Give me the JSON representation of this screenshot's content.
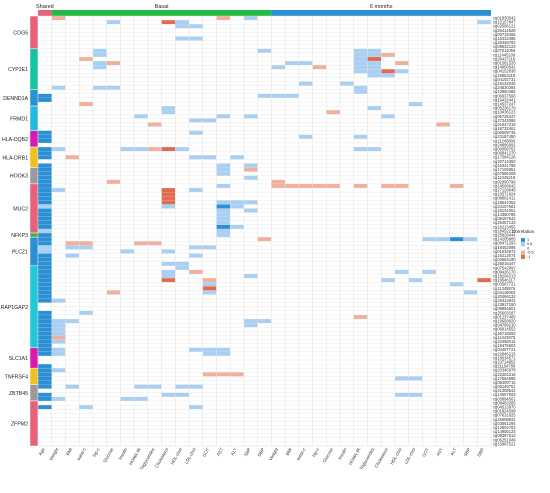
{
  "colors": {
    "shared": "#e8607a",
    "basal": "#22bb44",
    "six_months": "#2a8fd4",
    "grid": "#dcdcdc",
    "strong_pos": "#2a8fd4",
    "weak_pos": "#a9cff2",
    "weak_neg": "#f0b09c",
    "strong_neg": "#e06b4e",
    "gene_palette": [
      "#e8607a",
      "#17c3a0",
      "#2a8fd4",
      "#22bbdd",
      "#d81ab4",
      "#f0c020",
      "#9a9a9a",
      "#e8607a",
      "#3cb040",
      "#2a8fd4",
      "#22c7d8",
      "#d81ab4",
      "#f0c020",
      "#9a9a9a",
      "#e8607a"
    ]
  },
  "chart_data": {
    "type": "heatmap",
    "title": "",
    "groups": [
      {
        "name": "Shared",
        "columns": [
          "Age"
        ]
      },
      {
        "name": "Basal",
        "columns": [
          "Weight",
          "BMI",
          "waist-c",
          "hip-c",
          "Glucose",
          "Insulin",
          "HOMA-IR",
          "Triglycerides",
          "Cholesterol",
          "HDL-chol",
          "LDL-chol",
          "GOT",
          "AST",
          "ALT",
          "SBP",
          "DBP"
        ]
      },
      {
        "name": "6 months",
        "columns": [
          "Weight",
          "BMI",
          "waist-c",
          "hip-c",
          "Glucose",
          "Insulin",
          "HOMA-IR",
          "Triglycerides",
          "Cholesterol",
          "HDL-chol",
          "LDL-chol",
          "GOT",
          "AST",
          "ALT",
          "SBP",
          "DBP"
        ]
      }
    ],
    "genes": [
      {
        "name": "COG5",
        "label_shown": true,
        "probes": [
          "cg01830542",
          "cg12157847",
          "cg02566121",
          "cg26414528",
          "cg00719466",
          "cg15432486",
          "cg26348793",
          "cg09632123"
        ]
      },
      {
        "name": "CYP2E1",
        "label_shown": true,
        "probes": [
          "cg07011056",
          "cg11445109",
          "cg26437116",
          "cg01581526",
          "cg14956542",
          "cg04152838",
          "cg15863119",
          "cg04192731",
          "cg18132046",
          "cg24530284"
        ]
      },
      {
        "name": "DENND1A",
        "label_shown": true,
        "probes": [
          "cg10960485",
          "cg06937568",
          "cg19432441",
          "cg14537247"
        ]
      },
      {
        "name": "FRMD1",
        "label_shown": true,
        "probes": [
          "cg05236179",
          "cg10436123",
          "cg06725347",
          "cg27343086",
          "cg21547319",
          "cg18732461"
        ]
      },
      {
        "name": "HLA-DQB2",
        "label_shown": true,
        "probes": [
          "cg06509745",
          "cg23187450",
          "cg11245806",
          "cg24886091"
        ]
      },
      {
        "name": "HLA-DRB1",
        "label_shown": true,
        "probes": [
          "cg00058761",
          "cg06841270",
          "cg17584126",
          "cg20714350",
          "cg15341786"
        ]
      },
      {
        "name": "HOOK3",
        "label_shown": true,
        "probes": [
          "cg17106851",
          "cg07586309",
          "cg11045218",
          "cg02990798"
        ]
      },
      {
        "name": "MUC2",
        "label_shown": true,
        "probes": [
          "cg14508642",
          "cg27128048",
          "cg10571624",
          "cg08861411",
          "cg18544352",
          "cg24107581",
          "cg18134061",
          "cg14350786",
          "cg09167542",
          "cg26457133",
          "cg18213455",
          "cg18452219"
        ]
      },
      {
        "name": "NFKP3",
        "label_shown": true,
        "probes": [
          "cg25828444"
        ]
      },
      {
        "name": "PLCZ1",
        "label_shown": true,
        "probes": [
          "cg14205805",
          "cg08471293",
          "cg18452098",
          "cg01634972",
          "cg16213074",
          "cg03564190",
          "cg25016447"
        ]
      },
      {
        "name": "RAP1GAP2",
        "label_shown": true,
        "probes": [
          "cg07542097",
          "cg09426170",
          "cg18204213",
          "cg19546117",
          "cg03587721",
          "cg11345876",
          "cg04118063",
          "cg20468132",
          "cg26312941",
          "cg23917150",
          "cg08854601",
          "cg25603187",
          "cg01237485",
          "cg19658820",
          "cg04789210",
          "cg06914552",
          "cg26718093",
          "cg11042875",
          "cg23456014",
          "cg19475603"
        ]
      },
      {
        "name": "SLC1A1",
        "label_shown": true,
        "probes": [
          "cg04497721",
          "cg22846215",
          "cg18034571",
          "cg23714852",
          "cg21154789"
        ]
      },
      {
        "name": "TNFRSF4",
        "label_shown": true,
        "probes": [
          "cg20345978",
          "cg22304216",
          "cg17564985",
          "cg05409715"
        ]
      },
      {
        "name": "ZBTB45",
        "label_shown": true,
        "probes": [
          "cg06149751",
          "cg21308542",
          "cg14507923",
          "cg03894561"
        ]
      },
      {
        "name": "ZFPM2",
        "label_shown": true,
        "probes": [
          "cg08463285",
          "cg04513970",
          "cg01824598",
          "cg07631825",
          "cg25608841",
          "cg03561294",
          "cg12804763",
          "cg14905123",
          "cg09367813",
          "cg06251049",
          "cg15987521"
        ]
      }
    ],
    "cells": [
      [
        0,
        1,
        -0.5
      ],
      [
        0,
        13,
        -0.5
      ],
      [
        0,
        15,
        0.5
      ],
      [
        1,
        5,
        0.5
      ],
      [
        1,
        9,
        -1
      ],
      [
        1,
        10,
        0.5
      ],
      [
        1,
        32,
        0.5
      ],
      [
        2,
        10,
        0.5
      ],
      [
        2,
        11,
        0.5
      ],
      [
        5,
        10,
        0.5
      ],
      [
        5,
        11,
        0.5
      ],
      [
        8,
        4,
        0.5
      ],
      [
        8,
        16,
        0.5
      ],
      [
        8,
        23,
        0.5
      ],
      [
        8,
        24,
        0.5
      ],
      [
        9,
        4,
        0.5
      ],
      [
        9,
        23,
        0.5
      ],
      [
        9,
        24,
        0.5
      ],
      [
        9,
        25,
        -0.5
      ],
      [
        10,
        3,
        -0.5
      ],
      [
        10,
        23,
        0.5
      ],
      [
        10,
        24,
        -1
      ],
      [
        11,
        4,
        0.5
      ],
      [
        11,
        5,
        -0.5
      ],
      [
        11,
        18,
        0.5
      ],
      [
        11,
        19,
        0.5
      ],
      [
        11,
        23,
        0.5
      ],
      [
        11,
        24,
        0.5
      ],
      [
        11,
        26,
        -0.5
      ],
      [
        12,
        4,
        0.5
      ],
      [
        12,
        17,
        0.5
      ],
      [
        12,
        20,
        -0.5
      ],
      [
        12,
        23,
        0.5
      ],
      [
        12,
        24,
        0.5
      ],
      [
        13,
        23,
        0.5
      ],
      [
        13,
        24,
        0.5
      ],
      [
        13,
        25,
        -1
      ],
      [
        13,
        26,
        0.5
      ],
      [
        14,
        24,
        0.5
      ],
      [
        14,
        25,
        0.5
      ],
      [
        16,
        19,
        0.5
      ],
      [
        16,
        22,
        0.5
      ],
      [
        17,
        1,
        0.5
      ],
      [
        17,
        4,
        0.5
      ],
      [
        17,
        5,
        0.5
      ],
      [
        17,
        23,
        0.5
      ],
      [
        18,
        23,
        0.5
      ],
      [
        19,
        0,
        1
      ],
      [
        19,
        16,
        0.5
      ],
      [
        19,
        17,
        0.5
      ],
      [
        19,
        18,
        0.5
      ],
      [
        20,
        0,
        1
      ],
      [
        21,
        3,
        -0.5
      ],
      [
        21,
        27,
        0.5
      ],
      [
        22,
        9,
        0.5
      ],
      [
        22,
        24,
        0.5
      ],
      [
        23,
        9,
        0.5
      ],
      [
        23,
        21,
        -0.5
      ],
      [
        24,
        7,
        0.5
      ],
      [
        24,
        13,
        0.5
      ],
      [
        24,
        15,
        0.5
      ],
      [
        24,
        25,
        0.5
      ],
      [
        25,
        11,
        0.5
      ],
      [
        25,
        12,
        0.5
      ],
      [
        26,
        8,
        -0.5
      ],
      [
        26,
        29,
        -0.5
      ],
      [
        28,
        0,
        1
      ],
      [
        28,
        11,
        0.5
      ],
      [
        29,
        0,
        1
      ],
      [
        29,
        19,
        0.5
      ],
      [
        29,
        23,
        0.5
      ],
      [
        30,
        0,
        1
      ],
      [
        32,
        0,
        1
      ],
      [
        32,
        1,
        0.5
      ],
      [
        32,
        6,
        0.5
      ],
      [
        32,
        7,
        0.5
      ],
      [
        32,
        8,
        -0.5
      ],
      [
        32,
        9,
        -1
      ],
      [
        32,
        10,
        0.5
      ],
      [
        32,
        23,
        0.5
      ],
      [
        32,
        24,
        0.5
      ],
      [
        33,
        0,
        1
      ],
      [
        34,
        0,
        1
      ],
      [
        34,
        2,
        -0.5
      ],
      [
        34,
        11,
        0.5
      ],
      [
        34,
        12,
        0.5
      ],
      [
        34,
        14,
        0.5
      ],
      [
        36,
        0,
        1
      ],
      [
        36,
        13,
        0.5
      ],
      [
        36,
        15,
        0.5
      ],
      [
        37,
        0,
        1
      ],
      [
        37,
        13,
        0.5
      ],
      [
        37,
        15,
        -0.5
      ],
      [
        38,
        0,
        1
      ],
      [
        38,
        13,
        0.5
      ],
      [
        39,
        0,
        1
      ],
      [
        39,
        15,
        0.5
      ],
      [
        40,
        0,
        1
      ],
      [
        40,
        5,
        -0.5
      ],
      [
        40,
        17,
        -0.5
      ],
      [
        41,
        0,
        1
      ],
      [
        41,
        13,
        0.5
      ],
      [
        41,
        17,
        -0.5
      ],
      [
        41,
        18,
        -0.5
      ],
      [
        41,
        19,
        -0.5
      ],
      [
        41,
        20,
        -0.5
      ],
      [
        41,
        21,
        -0.5
      ],
      [
        41,
        23,
        -0.5
      ],
      [
        41,
        25,
        -0.5
      ],
      [
        41,
        26,
        -0.5
      ],
      [
        41,
        30,
        -0.5
      ],
      [
        42,
        0,
        1
      ],
      [
        42,
        1,
        0.5
      ],
      [
        42,
        9,
        -1
      ],
      [
        42,
        11,
        0.5
      ],
      [
        43,
        0,
        1
      ],
      [
        43,
        9,
        -1
      ],
      [
        44,
        0,
        1
      ],
      [
        44,
        9,
        -1
      ],
      [
        45,
        0,
        1
      ],
      [
        45,
        9,
        -1
      ],
      [
        45,
        13,
        0.5
      ],
      [
        45,
        14,
        0.5
      ],
      [
        45,
        15,
        0.5
      ],
      [
        46,
        0,
        0.5
      ],
      [
        46,
        9,
        0.5
      ],
      [
        46,
        13,
        1
      ],
      [
        46,
        14,
        0.5
      ],
      [
        47,
        0,
        1
      ],
      [
        47,
        13,
        0.5
      ],
      [
        47,
        15,
        0.5
      ],
      [
        48,
        0,
        1
      ],
      [
        48,
        13,
        0.5
      ],
      [
        49,
        0,
        1
      ],
      [
        49,
        13,
        0.5
      ],
      [
        50,
        0,
        1
      ],
      [
        50,
        13,
        0.5
      ],
      [
        51,
        0,
        1
      ],
      [
        51,
        13,
        1
      ],
      [
        51,
        14,
        0.5
      ],
      [
        52,
        0,
        0.5
      ],
      [
        52,
        13,
        0.5
      ],
      [
        53,
        0,
        1
      ],
      [
        53,
        13,
        0.5
      ],
      [
        54,
        0,
        1
      ],
      [
        54,
        16,
        -0.5
      ],
      [
        54,
        28,
        0.5
      ],
      [
        54,
        29,
        0.5
      ],
      [
        54,
        30,
        1
      ],
      [
        54,
        31,
        0.5
      ],
      [
        55,
        0,
        1
      ],
      [
        55,
        2,
        -0.5
      ],
      [
        55,
        3,
        -0.5
      ],
      [
        55,
        7,
        -0.5
      ],
      [
        55,
        8,
        -0.5
      ],
      [
        56,
        0,
        0.5
      ],
      [
        56,
        2,
        0.5
      ],
      [
        56,
        3,
        0.5
      ],
      [
        56,
        11,
        0.5
      ],
      [
        56,
        12,
        0.5
      ],
      [
        57,
        0,
        0.5
      ],
      [
        57,
        6,
        0.5
      ],
      [
        57,
        9,
        0.5
      ],
      [
        58,
        0,
        1
      ],
      [
        58,
        2,
        0.5
      ],
      [
        58,
        11,
        0.5
      ],
      [
        59,
        0,
        1
      ],
      [
        60,
        0,
        1
      ],
      [
        60,
        9,
        0.5
      ],
      [
        60,
        10,
        0.5
      ],
      [
        61,
        0,
        1
      ],
      [
        61,
        10,
        0.5
      ],
      [
        62,
        0,
        1
      ],
      [
        62,
        9,
        0.5
      ],
      [
        62,
        11,
        -0.5
      ],
      [
        62,
        26,
        0.5
      ],
      [
        62,
        28,
        0.5
      ],
      [
        63,
        0,
        1
      ],
      [
        63,
        9,
        0.5
      ],
      [
        63,
        15,
        0.5
      ],
      [
        64,
        0,
        1
      ],
      [
        64,
        9,
        -1
      ],
      [
        64,
        12,
        -0.5
      ],
      [
        64,
        25,
        0.5
      ],
      [
        64,
        27,
        0.5
      ],
      [
        64,
        32,
        -1
      ],
      [
        65,
        0,
        1
      ],
      [
        65,
        12,
        0.5
      ],
      [
        65,
        30,
        0.5
      ],
      [
        66,
        0,
        1
      ],
      [
        66,
        12,
        -1
      ],
      [
        67,
        0,
        1
      ],
      [
        67,
        5,
        -0.5
      ],
      [
        67,
        12,
        0.5
      ],
      [
        67,
        31,
        0.5
      ],
      [
        68,
        0,
        1
      ],
      [
        69,
        0,
        1
      ],
      [
        69,
        1,
        0.5
      ],
      [
        72,
        0,
        1
      ],
      [
        72,
        3,
        0.5
      ],
      [
        73,
        0,
        1
      ],
      [
        73,
        23,
        -0.5
      ],
      [
        74,
        0,
        1
      ],
      [
        74,
        1,
        0.5
      ],
      [
        74,
        2,
        0.5
      ],
      [
        74,
        15,
        0.5
      ],
      [
        74,
        16,
        0.5
      ],
      [
        75,
        0,
        1
      ],
      [
        75,
        1,
        0.5
      ],
      [
        75,
        15,
        0.5
      ],
      [
        76,
        0,
        1
      ],
      [
        76,
        1,
        0.5
      ],
      [
        77,
        0,
        1
      ],
      [
        77,
        1,
        0.5
      ],
      [
        78,
        0,
        1
      ],
      [
        78,
        1,
        -0.5
      ],
      [
        79,
        0,
        1
      ],
      [
        79,
        1,
        0.5
      ],
      [
        80,
        0,
        1
      ],
      [
        81,
        0,
        1
      ],
      [
        81,
        1,
        0.5
      ],
      [
        81,
        11,
        0.5
      ],
      [
        81,
        12,
        0.5
      ],
      [
        81,
        13,
        0.5
      ],
      [
        82,
        0,
        1
      ],
      [
        82,
        1,
        0.5
      ],
      [
        82,
        12,
        0.5
      ],
      [
        82,
        13,
        0.5
      ],
      [
        85,
        0,
        1
      ],
      [
        86,
        0,
        1
      ],
      [
        86,
        1,
        0.5
      ],
      [
        87,
        0,
        1
      ],
      [
        87,
        12,
        -0.5
      ],
      [
        87,
        13,
        -0.5
      ],
      [
        87,
        14,
        -0.5
      ],
      [
        88,
        0,
        1
      ],
      [
        88,
        26,
        0.5
      ],
      [
        88,
        27,
        0.5
      ],
      [
        89,
        0,
        1
      ],
      [
        90,
        0,
        1
      ],
      [
        90,
        2,
        0.5
      ],
      [
        90,
        7,
        0.5
      ],
      [
        90,
        8,
        0.5
      ],
      [
        90,
        10,
        0.5
      ],
      [
        90,
        11,
        0.5
      ],
      [
        92,
        0,
        1
      ],
      [
        92,
        9,
        0.5
      ],
      [
        92,
        10,
        0.5
      ],
      [
        92,
        26,
        0.5
      ],
      [
        92,
        27,
        0.5
      ],
      [
        93,
        0,
        1
      ],
      [
        93,
        1,
        0.5
      ],
      [
        93,
        6,
        0.5
      ],
      [
        93,
        7,
        0.5
      ],
      [
        95,
        0,
        1
      ],
      [
        95,
        3,
        0.5
      ],
      [
        95,
        11,
        0.5
      ]
    ],
    "legend": {
      "title": "Correlation",
      "ticks": [
        "1",
        "0.5",
        "0",
        "-0.5",
        "-1"
      ],
      "placement": "right"
    },
    "grid": true
  }
}
